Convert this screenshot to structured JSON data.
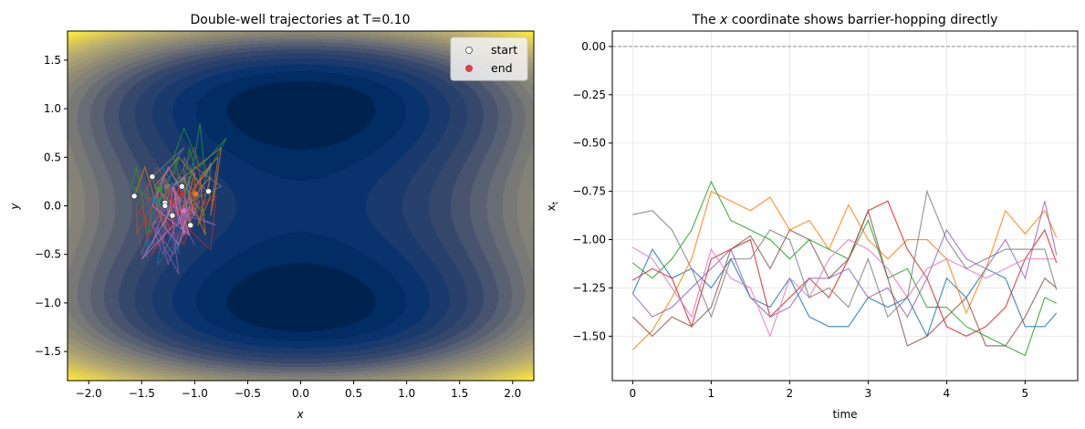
{
  "chart_data": [
    {
      "type": "line",
      "title": "Double-well trajectories at T=0.10",
      "xlabel": "x",
      "ylabel": "y",
      "xlim": [
        -2.2,
        2.2
      ],
      "ylim": [
        -1.8,
        1.8
      ],
      "xticks": [
        "−2.0",
        "−1.5",
        "−1.0",
        "−0.5",
        "0.0",
        "0.5",
        "1.0",
        "1.5",
        "2.0"
      ],
      "xtick_values": [
        -2.0,
        -1.5,
        -1.0,
        -0.5,
        0.0,
        0.5,
        1.0,
        1.5,
        2.0
      ],
      "yticks": [
        "−1.5",
        "−1.0",
        "−0.5",
        "0.0",
        "0.5",
        "1.0",
        "1.5"
      ],
      "ytick_values": [
        -1.5,
        -1.0,
        -0.5,
        0.0,
        0.5,
        1.0,
        1.5
      ],
      "background": "filled contour of double-well potential, wells at (0, 1) and (0, -1), cividis colormap",
      "legend": {
        "placement": "top-right",
        "entries": [
          {
            "label": "start",
            "color": "#ffffff"
          },
          {
            "label": "end",
            "color": "#d62728"
          }
        ]
      },
      "trajectory_y": [
        [
          0.03,
          -0.3,
          0.2,
          -0.5,
          0.1,
          0.3,
          -0.2,
          -0.6,
          -0.4,
          0.1,
          -0.55,
          -0.3,
          0.2,
          -0.1,
          0.3,
          -0.5,
          -0.2,
          0.4,
          0.1,
          -0.3,
          0.2,
          -0.1,
          0.05
        ],
        [
          0.1,
          0.4,
          -0.2,
          0.3,
          0.6,
          0.2,
          -0.1,
          0.5,
          0.3,
          -0.3,
          0.1,
          0.45,
          0.2,
          -0.2,
          0.0,
          0.35,
          -0.1,
          0.2,
          0.5,
          0.1,
          -0.2,
          0.3,
          0.12
        ],
        [
          0.2,
          0.5,
          0.8,
          0.4,
          0.7,
          0.3,
          0.85,
          0.5,
          0.1,
          0.4,
          0.6,
          0.2,
          -0.1,
          0.3,
          0.5,
          0.0,
          0.2,
          -0.3,
          0.1,
          0.4,
          0.2,
          0.0,
          0.18
        ],
        [
          -0.1,
          0.2,
          -0.3,
          0.1,
          -0.4,
          -0.2,
          0.2,
          -0.5,
          -0.3,
          0.0,
          0.3,
          -0.2,
          -0.45,
          0.1,
          -0.1,
          0.2,
          -0.35,
          0.0,
          -0.2,
          0.15,
          -0.1,
          0.05,
          0.12
        ],
        [
          0.0,
          -0.4,
          -0.2,
          -0.6,
          -0.3,
          0.1,
          -0.5,
          -0.2,
          0.0,
          -0.1,
          -0.3,
          -0.7,
          -0.4,
          0.0,
          -0.2,
          -0.5,
          0.05,
          -0.3,
          -0.1,
          -0.4,
          0.0,
          -0.2,
          -0.1
        ],
        [
          0.3,
          0.0,
          -0.3,
          0.2,
          0.4,
          -0.1,
          0.1,
          -0.4,
          0.3,
          0.6,
          0.2,
          -0.2,
          0.1,
          0.35,
          -0.1,
          -0.5,
          -0.2,
          0.2,
          -0.3,
          0.0,
          0.3,
          0.1,
          0.15
        ],
        [
          -0.2,
          0.1,
          0.4,
          0.0,
          -0.3,
          0.2,
          -0.1,
          -0.55,
          -0.2,
          0.1,
          0.3,
          -0.1,
          0.0,
          -0.4,
          -0.2,
          0.1,
          -0.3,
          -0.1,
          0.2,
          -0.2,
          0.0,
          -0.3,
          -0.05
        ],
        [
          0.15,
          0.45,
          0.1,
          0.3,
          -0.2,
          0.0,
          0.5,
          0.2,
          -0.1,
          0.3,
          0.0,
          0.2,
          0.6,
          0.3,
          -0.1,
          0.2,
          0.4,
          0.0,
          0.2,
          -0.2,
          0.1,
          0.3,
          0.2
        ]
      ],
      "trajectory_colors": [
        "#1f77b4",
        "#ff7f0e",
        "#2ca02c",
        "#d62728",
        "#9467bd",
        "#8c564b",
        "#e377c2",
        "#7f7f7f"
      ]
    },
    {
      "type": "line",
      "title_pre": "The ",
      "title_var": "x",
      "title_post": " coordinate shows barrier-hopping directly",
      "xlabel": "time",
      "ylabel": "x",
      "ylabel_sub": "t",
      "xlim": [
        -0.26,
        5.67
      ],
      "ylim": [
        -1.73,
        0.08
      ],
      "xticks": [
        "0",
        "1",
        "2",
        "3",
        "4",
        "5"
      ],
      "xtick_values": [
        0,
        1,
        2,
        3,
        4,
        5
      ],
      "yticks": [
        "0.00",
        "−0.25",
        "−0.50",
        "−0.75",
        "−1.00",
        "−1.25",
        "−1.50"
      ],
      "ytick_values": [
        0,
        -0.25,
        -0.5,
        -0.75,
        -1.0,
        -1.25,
        -1.5
      ],
      "grid": true,
      "reference_line": {
        "y": 0.0,
        "style": "dashed",
        "color": "#808080"
      },
      "x": [
        0,
        0.25,
        0.5,
        0.75,
        1.0,
        1.25,
        1.5,
        1.75,
        2.0,
        2.25,
        2.5,
        2.75,
        3.0,
        3.25,
        3.5,
        3.75,
        4.0,
        4.25,
        4.5,
        4.75,
        5.0,
        5.25,
        5.4
      ],
      "series": [
        {
          "color": "#1f77b4",
          "values": [
            -1.28,
            -1.05,
            -1.2,
            -1.15,
            -1.25,
            -1.1,
            -1.3,
            -1.35,
            -1.2,
            -1.4,
            -1.45,
            -1.45,
            -1.3,
            -1.35,
            -1.3,
            -1.5,
            -1.2,
            -1.3,
            -1.15,
            -1.2,
            -1.45,
            -1.45,
            -1.38
          ]
        },
        {
          "color": "#ff7f0e",
          "values": [
            -1.57,
            -1.47,
            -1.3,
            -1.1,
            -0.75,
            -0.8,
            -0.85,
            -0.78,
            -0.95,
            -0.9,
            -1.05,
            -0.82,
            -1.0,
            -1.1,
            -1.0,
            -1.0,
            -1.1,
            -1.38,
            -1.15,
            -0.85,
            -0.97,
            -0.85,
            -0.99
          ]
        },
        {
          "color": "#2ca02c",
          "values": [
            -1.12,
            -1.2,
            -1.1,
            -0.95,
            -0.7,
            -0.9,
            -0.95,
            -1.0,
            -1.1,
            -1.0,
            -1.05,
            -1.1,
            -0.9,
            -1.2,
            -1.15,
            -1.35,
            -1.35,
            -1.45,
            -1.5,
            -1.55,
            -1.6,
            -1.3,
            -1.33
          ]
        },
        {
          "color": "#d62728",
          "values": [
            -1.21,
            -1.15,
            -1.2,
            -1.45,
            -1.1,
            -1.05,
            -1.0,
            -1.4,
            -1.3,
            -1.2,
            -1.3,
            -1.1,
            -0.85,
            -0.8,
            -1.05,
            -1.2,
            -1.45,
            -1.5,
            -1.45,
            -1.35,
            -1.1,
            -0.95,
            -1.12
          ]
        },
        {
          "color": "#9467bd",
          "values": [
            -1.28,
            -1.4,
            -1.35,
            -1.25,
            -1.15,
            -1.05,
            -1.3,
            -1.4,
            -1.35,
            -1.2,
            -1.2,
            -1.15,
            -1.3,
            -1.25,
            -1.4,
            -1.2,
            -0.95,
            -1.1,
            -1.15,
            -1.0,
            -1.2,
            -0.8,
            -1.08
          ]
        },
        {
          "color": "#8c564b",
          "values": [
            -1.4,
            -1.5,
            -1.4,
            -1.45,
            -1.35,
            -1.05,
            -0.98,
            -1.15,
            -0.95,
            -1.0,
            -1.2,
            -1.1,
            -0.85,
            -1.2,
            -1.55,
            -1.5,
            -1.4,
            -1.3,
            -1.55,
            -1.55,
            -1.4,
            -1.2,
            -1.25
          ]
        },
        {
          "color": "#e377c2",
          "values": [
            -1.04,
            -1.1,
            -1.25,
            -1.4,
            -1.05,
            -1.2,
            -1.25,
            -1.5,
            -1.2,
            -1.3,
            -1.1,
            -1.0,
            -1.05,
            -1.15,
            -1.3,
            -1.15,
            -1.1,
            -1.15,
            -1.2,
            -1.15,
            -1.1,
            -1.1,
            -1.1
          ]
        },
        {
          "color": "#7f7f7f",
          "values": [
            -0.87,
            -0.85,
            -0.95,
            -1.15,
            -1.4,
            -1.1,
            -1.1,
            -0.95,
            -1.0,
            -1.3,
            -1.25,
            -1.35,
            -1.1,
            -1.4,
            -1.3,
            -0.75,
            -1.0,
            -1.15,
            -1.1,
            -1.05,
            -1.05,
            -1.05,
            -1.26
          ]
        }
      ]
    }
  ]
}
